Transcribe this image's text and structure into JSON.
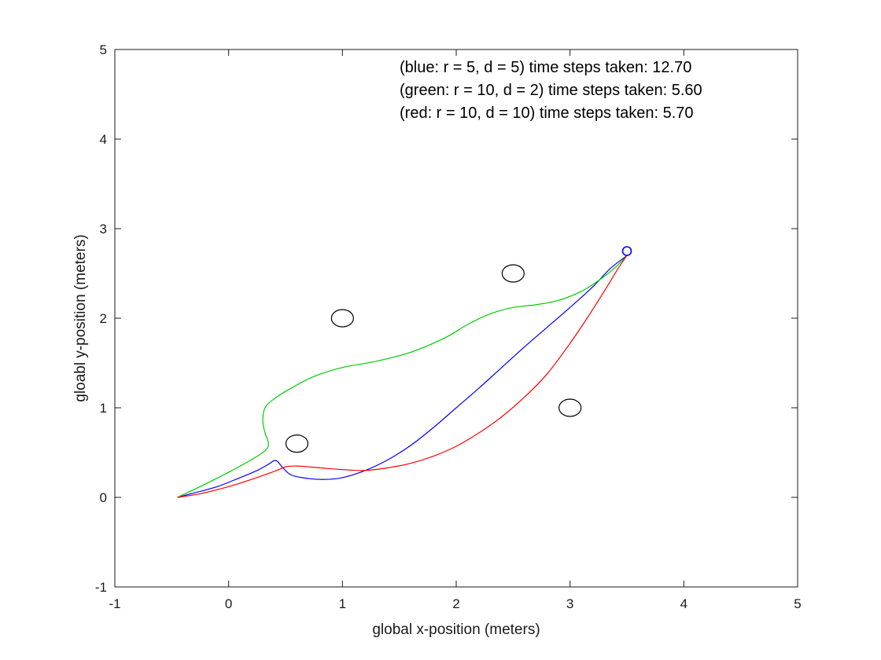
{
  "chart_data": {
    "type": "line",
    "xlabel": "global x-position (meters)",
    "ylabel": "gloabl y-position (meters)",
    "xlim": [
      -1,
      5
    ],
    "ylim": [
      -1,
      5
    ],
    "xticks": [
      -1,
      0,
      1,
      2,
      3,
      4,
      5
    ],
    "yticks": [
      -1,
      0,
      1,
      2,
      3,
      4,
      5
    ],
    "grid": false,
    "annotations": [
      "(blue: r = 5, d = 5) time steps taken: 12.70",
      "(green: r = 10, d = 2) time steps taken: 5.60",
      "(red: r = 10, d = 10) time steps taken: 5.70"
    ],
    "obstacles": [
      {
        "x": 0.6,
        "y": 0.6
      },
      {
        "x": 1.0,
        "y": 2.0
      },
      {
        "x": 2.5,
        "y": 2.5
      },
      {
        "x": 3.0,
        "y": 1.0
      }
    ],
    "goal": {
      "x": 3.5,
      "y": 2.75
    },
    "series": [
      {
        "color": "#0000ff",
        "x": [
          -0.45,
          -0.3,
          -0.1,
          0.1,
          0.25,
          0.35,
          0.4,
          0.43,
          0.47,
          0.55,
          0.7,
          0.85,
          1.0,
          1.2,
          1.4,
          1.6,
          1.8,
          2.0,
          2.2,
          2.4,
          2.6,
          2.8,
          3.0,
          3.2,
          3.35,
          3.5
        ],
        "y": [
          0.0,
          0.05,
          0.12,
          0.22,
          0.3,
          0.37,
          0.41,
          0.4,
          0.34,
          0.25,
          0.21,
          0.2,
          0.22,
          0.3,
          0.42,
          0.58,
          0.78,
          1.0,
          1.22,
          1.45,
          1.68,
          1.9,
          2.12,
          2.35,
          2.55,
          2.7
        ]
      },
      {
        "color": "#00cc00",
        "x": [
          -0.45,
          -0.25,
          0.0,
          0.2,
          0.32,
          0.35,
          0.32,
          0.3,
          0.32,
          0.4,
          0.55,
          0.75,
          1.0,
          1.3,
          1.6,
          1.9,
          2.1,
          2.3,
          2.5,
          2.7,
          2.9,
          3.1,
          3.25,
          3.4,
          3.5
        ],
        "y": [
          0.0,
          0.12,
          0.28,
          0.42,
          0.52,
          0.6,
          0.72,
          0.85,
          1.0,
          1.1,
          1.22,
          1.35,
          1.45,
          1.52,
          1.62,
          1.78,
          1.93,
          2.05,
          2.12,
          2.15,
          2.2,
          2.3,
          2.42,
          2.57,
          2.7
        ]
      },
      {
        "color": "#ff0000",
        "x": [
          -0.45,
          -0.25,
          0.0,
          0.2,
          0.4,
          0.5,
          0.6,
          0.8,
          1.0,
          1.2,
          1.4,
          1.6,
          1.8,
          2.0,
          2.2,
          2.4,
          2.6,
          2.8,
          3.0,
          3.15,
          3.3,
          3.42,
          3.5
        ],
        "y": [
          0.0,
          0.04,
          0.12,
          0.2,
          0.29,
          0.34,
          0.35,
          0.33,
          0.31,
          0.3,
          0.33,
          0.38,
          0.46,
          0.57,
          0.72,
          0.9,
          1.12,
          1.38,
          1.72,
          2.0,
          2.3,
          2.55,
          2.7
        ]
      }
    ]
  }
}
